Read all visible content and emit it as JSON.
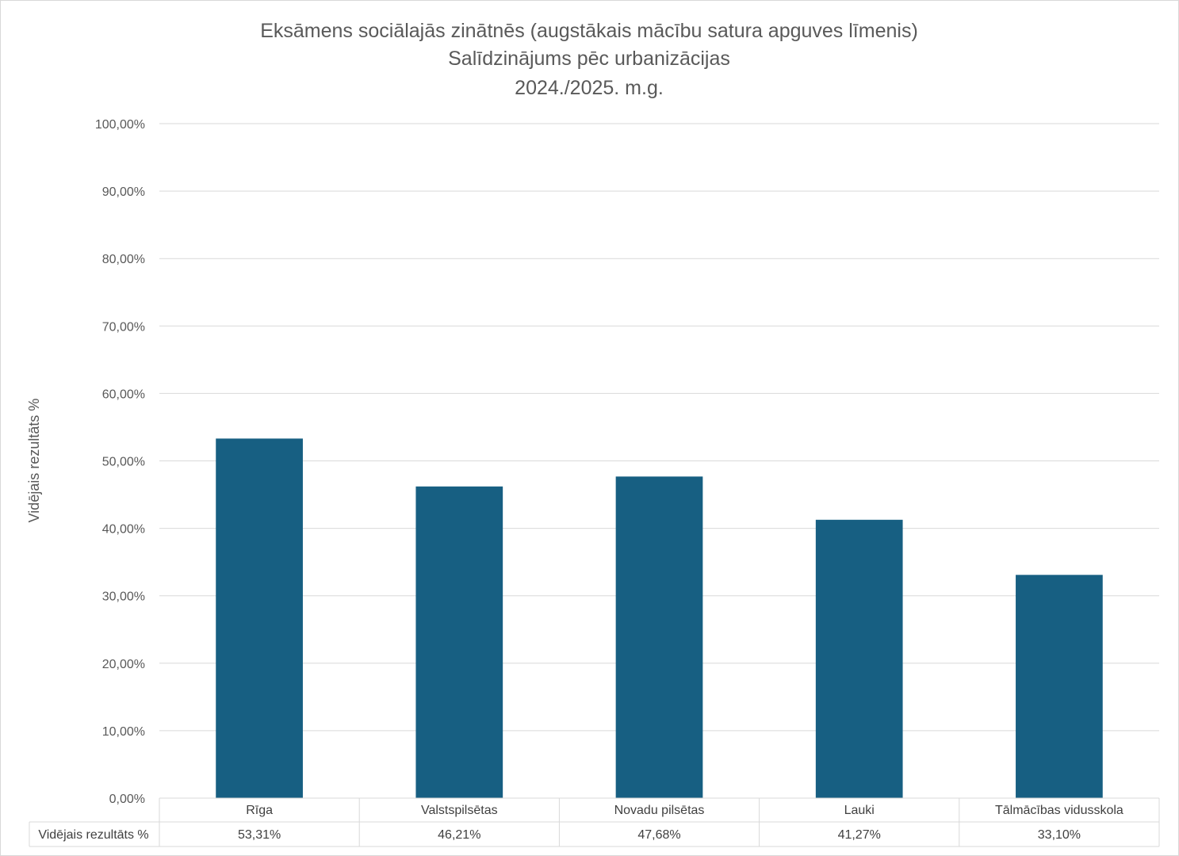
{
  "chart_data": {
    "type": "bar",
    "title_lines": [
      "Eksāmens sociālajās zinātnēs (augstākais mācību satura apguves līmenis)",
      "Salīdzinājums pēc urbanizācijas",
      "2024./2025. m.g."
    ],
    "ylabel": "Vidējais rezultāts %",
    "ylim": [
      0,
      100
    ],
    "ytick_labels": [
      "0,00%",
      "10,00%",
      "20,00%",
      "30,00%",
      "40,00%",
      "50,00%",
      "60,00%",
      "70,00%",
      "80,00%",
      "90,00%",
      "100,00%"
    ],
    "categories": [
      "Rīga",
      "Valstspilsētas",
      "Novadu pilsētas",
      "Lauki",
      "Tālmācības vidusskola"
    ],
    "series": [
      {
        "name": "Vidējais rezultāts %",
        "values": [
          53.31,
          46.21,
          47.68,
          41.27,
          33.1
        ],
        "value_labels": [
          "53,31%",
          "46,21%",
          "47,68%",
          "41,27%",
          "33,10%"
        ],
        "color": "#175F82"
      }
    ],
    "grid": true,
    "legend": "data-table-below"
  }
}
